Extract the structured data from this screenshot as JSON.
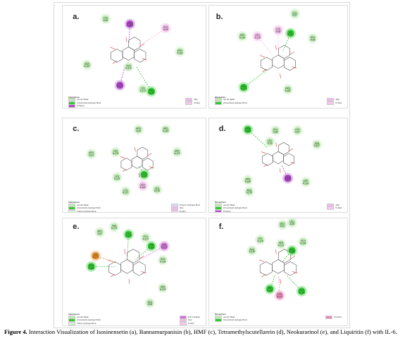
{
  "caption": {
    "label": "Figure 4.",
    "text": " Interaction Visualization of Isosinensetin (a), Bannamurpanisin (b), HMF (c), Tetramethylscutellarein (d), Neokurarinol (e), and Liquiritin (f) with IL-6."
  },
  "panels": [
    {
      "key": "a",
      "letter": "a.",
      "residues": [
        "LEU A:56",
        "LEU A:163",
        "ALA A:58",
        "ARG A:182",
        "SER A:157",
        "GLN A:175",
        "LYS A:171",
        "LYS A:172",
        "ARG A:179"
      ],
      "legend_title": "Interactions",
      "legend_left": [
        "van der Waals",
        "Conventional Hydrogen Bond",
        "Pi-Sigma"
      ],
      "legend_right": [
        "Alkyl",
        "Pi-Alkyl"
      ]
    },
    {
      "key": "b",
      "letter": "b.",
      "residues": [
        "LEU A:57",
        "ARG A:180",
        "LEU A:178",
        "LYS A:56",
        "ILE A:161",
        "ALA A:58",
        "ARG A:179",
        "ARG A:182"
      ],
      "legend_title": "Interactions",
      "legend_left": [
        "van der Waals",
        "Conventional Hydrogen Bond"
      ],
      "legend_right": [
        "Alkyl",
        "Pi-Alkyl"
      ]
    },
    {
      "key": "c",
      "letter": "c.",
      "residues": [
        "ARG A:30",
        "ARG A:182",
        "LEU A:178",
        "ARG A:179",
        "ARG A:24",
        "GLN A:175",
        "LEU A:178",
        "LEU A:162",
        "LYS A:171",
        "LEU A:176"
      ],
      "legend_title": "Interactions",
      "legend_left": [
        "van der Waals",
        "Conventional Hydrogen Bond",
        "Carbon Hydrogen Bond"
      ],
      "legend_right": [
        "Pi-Donor Hydrogen Bond",
        "Alkyl",
        "Pi-Alkyl"
      ]
    },
    {
      "key": "d",
      "letter": "d.",
      "residues": [
        "ARG A:182",
        "ALA A:58",
        "LEU A:57",
        "SER A:157",
        "ARG A:180",
        "ARG A:179",
        "GLN A:175",
        "ASP A:160",
        "LEU A:56"
      ],
      "legend_title": "Interactions",
      "legend_left": [
        "van der Waals",
        "Conventional Hydrogen Bond",
        "Pi-Sigma"
      ],
      "legend_right": [
        "Alkyl",
        "Pi-Alkyl"
      ]
    },
    {
      "key": "e",
      "letter": "e.",
      "residues": [
        "PHE A:173",
        "MET A:67",
        "LEU A:178",
        "GLU A:172",
        "PHE A:162",
        "LYS A:171",
        "LYS A:175",
        "GLN A:153",
        "ARG A:180",
        "SER A:176",
        "ALA A:58"
      ],
      "legend_title": "Interactions",
      "legend_left": [
        "van der Waals",
        "Conventional Hydrogen Bond",
        "Carbon Hydrogen Bond",
        "Pi-Anion"
      ],
      "legend_right": [
        "Pi-Pi T-shaped",
        "Alkyl",
        "Pi-Alkyl"
      ]
    },
    {
      "key": "f",
      "letter": "f.",
      "residues": [
        "MET A:67",
        "LEU A:56",
        "LEU A:178",
        "GLN A:154",
        "SER A:176",
        "ARG A:180",
        "ARG A:179",
        "ARG A:182",
        "GLN A:175",
        "LYS A:171"
      ],
      "legend_title": "Interactions",
      "legend_left": [
        "van der Waals",
        "Conventional Hydrogen Bond"
      ],
      "legend_right": [
        "Pi-Cation"
      ]
    }
  ],
  "colors": {
    "vdw": "#bfe8b5",
    "hbond": "#33c833",
    "carbon_h": "#d6f3d2",
    "pi_sigma": "#b044c8",
    "alkyl": "#f0b8e6",
    "pi_alkyl": "#f4c6f0",
    "pi_anion": "#e08a2a",
    "pi_cation": "#e88ab8",
    "pi_donor": "#d8d8f8",
    "pi_pi": "#d070d8"
  }
}
